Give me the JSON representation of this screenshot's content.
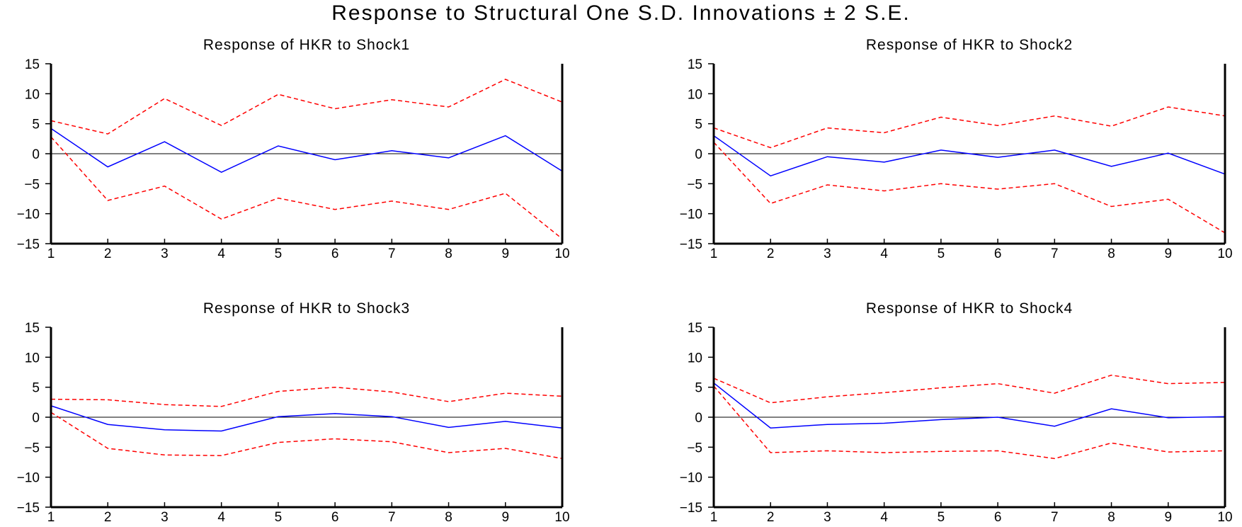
{
  "figure_title": "Response to Structural One S.D. Innovations ± 2 S.E.",
  "colors": {
    "response": "#0000ff",
    "band": "#ff0000",
    "zero_line": "#000000"
  },
  "chart_data": [
    {
      "type": "line",
      "title": "Response of HKR to Shock1",
      "x": [
        1,
        2,
        3,
        4,
        5,
        6,
        7,
        8,
        9,
        10
      ],
      "ylim": [
        -15,
        15
      ],
      "yticks": [
        15,
        10,
        5,
        0,
        -5,
        -10,
        -15
      ],
      "series": [
        {
          "values": [
            4.2,
            -2.2,
            2.0,
            -3.1,
            1.3,
            -1.0,
            0.5,
            -0.7,
            3.0,
            -2.9
          ]
        },
        {
          "values": [
            5.5,
            3.3,
            9.2,
            4.7,
            9.9,
            7.5,
            9.0,
            7.8,
            12.4,
            8.6
          ]
        },
        {
          "values": [
            2.8,
            -7.8,
            -5.4,
            -10.9,
            -7.4,
            -9.3,
            -7.9,
            -9.3,
            -6.6,
            -14.2
          ]
        }
      ]
    },
    {
      "type": "line",
      "title": "Response of HKR to Shock2",
      "x": [
        1,
        2,
        3,
        4,
        5,
        6,
        7,
        8,
        9,
        10
      ],
      "ylim": [
        -15,
        15
      ],
      "yticks": [
        15,
        10,
        5,
        0,
        -5,
        -10,
        -15
      ],
      "series": [
        {
          "values": [
            3.0,
            -3.7,
            -0.5,
            -1.4,
            0.6,
            -0.6,
            0.6,
            -2.1,
            0.1,
            -3.4
          ]
        },
        {
          "values": [
            4.3,
            1.0,
            4.3,
            3.5,
            6.1,
            4.7,
            6.3,
            4.6,
            7.8,
            6.3
          ]
        },
        {
          "values": [
            1.9,
            -8.3,
            -5.2,
            -6.2,
            -5.0,
            -5.9,
            -5.0,
            -8.8,
            -7.6,
            -13.2
          ]
        }
      ]
    },
    {
      "type": "line",
      "title": "Response of HKR to Shock3",
      "x": [
        1,
        2,
        3,
        4,
        5,
        6,
        7,
        8,
        9,
        10
      ],
      "ylim": [
        -15,
        15
      ],
      "yticks": [
        15,
        10,
        5,
        0,
        -5,
        -10,
        -15
      ],
      "series": [
        {
          "values": [
            1.9,
            -1.2,
            -2.1,
            -2.3,
            0.1,
            0.6,
            0.1,
            -1.7,
            -0.7,
            -1.8
          ]
        },
        {
          "values": [
            3.0,
            2.9,
            2.1,
            1.8,
            4.3,
            5.0,
            4.2,
            2.6,
            4.0,
            3.5
          ]
        },
        {
          "values": [
            0.8,
            -5.2,
            -6.3,
            -6.4,
            -4.2,
            -3.6,
            -4.1,
            -5.9,
            -5.2,
            -6.9
          ]
        }
      ]
    },
    {
      "type": "line",
      "title": "Response of HKR to Shock4",
      "x": [
        1,
        2,
        3,
        4,
        5,
        6,
        7,
        8,
        9,
        10
      ],
      "ylim": [
        -15,
        15
      ],
      "yticks": [
        15,
        10,
        5,
        0,
        -5,
        -10,
        -15
      ],
      "series": [
        {
          "values": [
            5.7,
            -1.8,
            -1.2,
            -1.0,
            -0.4,
            0.0,
            -1.5,
            1.4,
            -0.1,
            0.1
          ]
        },
        {
          "values": [
            6.5,
            2.4,
            3.4,
            4.1,
            4.9,
            5.6,
            4.0,
            7.0,
            5.6,
            5.8
          ]
        },
        {
          "values": [
            5.2,
            -5.9,
            -5.6,
            -5.9,
            -5.7,
            -5.6,
            -6.9,
            -4.3,
            -5.8,
            -5.6
          ]
        }
      ]
    }
  ]
}
